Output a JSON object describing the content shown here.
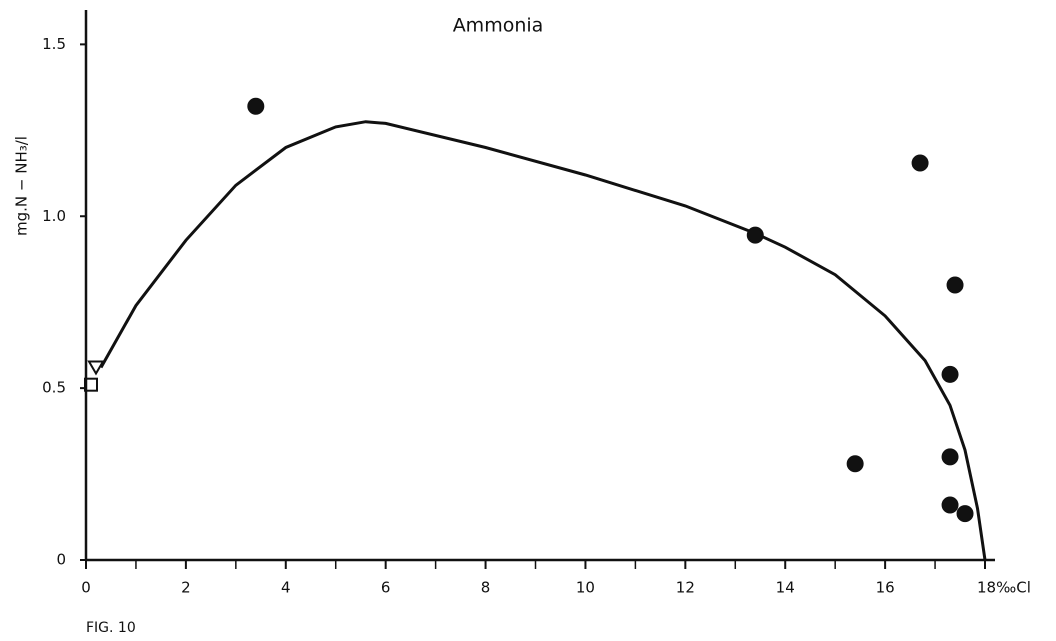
{
  "chart_data": {
    "type": "scatter",
    "title": "Ammonia",
    "ylabel": "mg.N − NH₃/l",
    "caption": "FIG. 10",
    "xlim": [
      0,
      18.2
    ],
    "ylim": [
      0,
      1.6
    ],
    "xticks": [
      0,
      2,
      4,
      6,
      8,
      10,
      12,
      14,
      16,
      {
        "value": 18,
        "label": "18‰Cl"
      }
    ],
    "xminorticks": [
      1,
      3,
      5,
      7,
      9,
      11,
      13,
      15,
      17
    ],
    "yticks": [
      0,
      0.5,
      {
        "value": 1,
        "label": "1.0"
      },
      1.5
    ],
    "color": "#111111",
    "series": [
      {
        "marker": "circle",
        "filled": true,
        "x": [
          3.4,
          16.7,
          13.4,
          17.4,
          17.3,
          15.4,
          17.3,
          17.3,
          17.6
        ],
        "values": [
          1.32,
          1.155,
          0.945,
          0.8,
          0.54,
          0.28,
          0.3,
          0.16,
          0.135
        ]
      },
      {
        "marker": "square",
        "filled": false,
        "x": [
          0.1
        ],
        "values": [
          0.51
        ]
      },
      {
        "marker": "triangle",
        "filled": false,
        "x": [
          0.2
        ],
        "values": [
          0.56
        ]
      }
    ],
    "curve": {
      "x": [
        0.3,
        1,
        2,
        3,
        4,
        5,
        5.6,
        6,
        8,
        10,
        12,
        13.4,
        14,
        15,
        16,
        16.8,
        17.3,
        17.6,
        17.85,
        18
      ],
      "values": [
        0.56,
        0.74,
        0.93,
        1.09,
        1.2,
        1.26,
        1.275,
        1.27,
        1.2,
        1.12,
        1.03,
        0.95,
        0.91,
        0.83,
        0.71,
        0.58,
        0.45,
        0.32,
        0.15,
        0
      ]
    }
  }
}
